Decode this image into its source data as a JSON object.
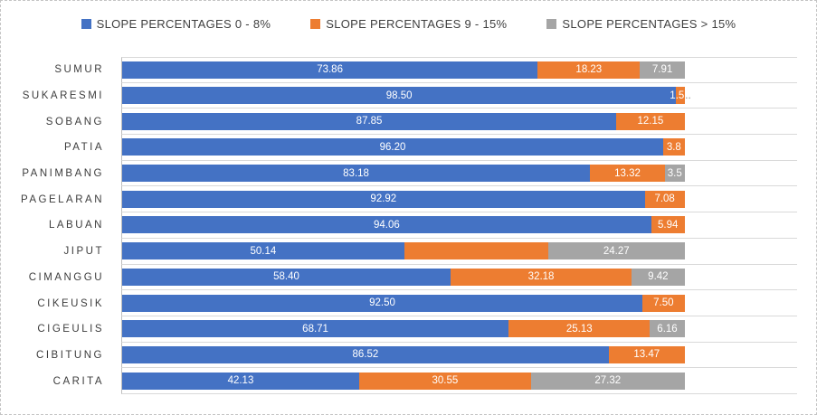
{
  "chart_data": {
    "type": "bar",
    "orientation": "horizontal",
    "stacked": true,
    "title": "",
    "xlabel": "",
    "ylabel": "",
    "axis_max": 120,
    "grid": "category-lines",
    "legend_position": "top",
    "series": [
      {
        "name": "SLOPE PERCENTAGES 0 - 8%",
        "color": "#4472C4"
      },
      {
        "name": "SLOPE PERCENTAGES 9 - 15%",
        "color": "#ED7D31"
      },
      {
        "name": "SLOPE PERCENTAGES > 15%",
        "color": "#A5A5A5"
      }
    ],
    "categories": [
      "SUMUR",
      "SUKARESMI",
      "SOBANG",
      "PATIA",
      "PANIMBANG",
      "PAGELARAN",
      "LABUAN",
      "JIPUT",
      "CIMANGGU",
      "CIKEUSIK",
      "CIGEULIS",
      "CIBITUNG",
      "CARITA"
    ],
    "rows": [
      {
        "category": "SUMUR",
        "values": [
          73.86,
          18.23,
          7.91
        ],
        "labels": [
          "73.86",
          "18.23",
          "7.91"
        ]
      },
      {
        "category": "SUKARESMI",
        "values": [
          98.5,
          1.5,
          0
        ],
        "labels": [
          "98.50",
          "1.5",
          ""
        ],
        "truncation_suffix": ".."
      },
      {
        "category": "SOBANG",
        "values": [
          87.85,
          12.15,
          0
        ],
        "labels": [
          "87.85",
          "12.15",
          ""
        ]
      },
      {
        "category": "PATIA",
        "values": [
          96.2,
          3.8,
          0
        ],
        "labels": [
          "96.20",
          "3.8",
          ""
        ]
      },
      {
        "category": "PANIMBANG",
        "values": [
          83.18,
          13.32,
          3.5
        ],
        "labels": [
          "83.18",
          "13.32",
          "3.5"
        ]
      },
      {
        "category": "PAGELARAN",
        "values": [
          92.92,
          7.08,
          0
        ],
        "labels": [
          "92.92",
          "7.08",
          ""
        ]
      },
      {
        "category": "LABUAN",
        "values": [
          94.06,
          5.94,
          0
        ],
        "labels": [
          "94.06",
          "5.94",
          ""
        ]
      },
      {
        "category": "JIPUT",
        "values": [
          50.14,
          25.59,
          24.27
        ],
        "labels": [
          "50.14",
          "",
          "24.27"
        ]
      },
      {
        "category": "CIMANGGU",
        "values": [
          58.4,
          32.18,
          9.42
        ],
        "labels": [
          "58.40",
          "32.18",
          "9.42"
        ]
      },
      {
        "category": "CIKEUSIK",
        "values": [
          92.5,
          7.5,
          0
        ],
        "labels": [
          "92.50",
          "7.50",
          ""
        ]
      },
      {
        "category": "CIGEULIS",
        "values": [
          68.71,
          25.13,
          6.16
        ],
        "labels": [
          "68.71",
          "25.13",
          "6.16"
        ]
      },
      {
        "category": "CIBITUNG",
        "values": [
          86.52,
          13.47,
          0
        ],
        "labels": [
          "86.52",
          "13.47",
          ""
        ]
      },
      {
        "category": "CARITA",
        "values": [
          42.13,
          30.55,
          27.32
        ],
        "labels": [
          "42.13",
          "30.55",
          "27.32"
        ]
      }
    ]
  },
  "colors": {
    "text": "#3f3f3f",
    "value_label": "#ffffff",
    "gridline": "#d9d9d9",
    "axis_line": "#bfbfbf",
    "frame_border": "#c4c4c4"
  }
}
